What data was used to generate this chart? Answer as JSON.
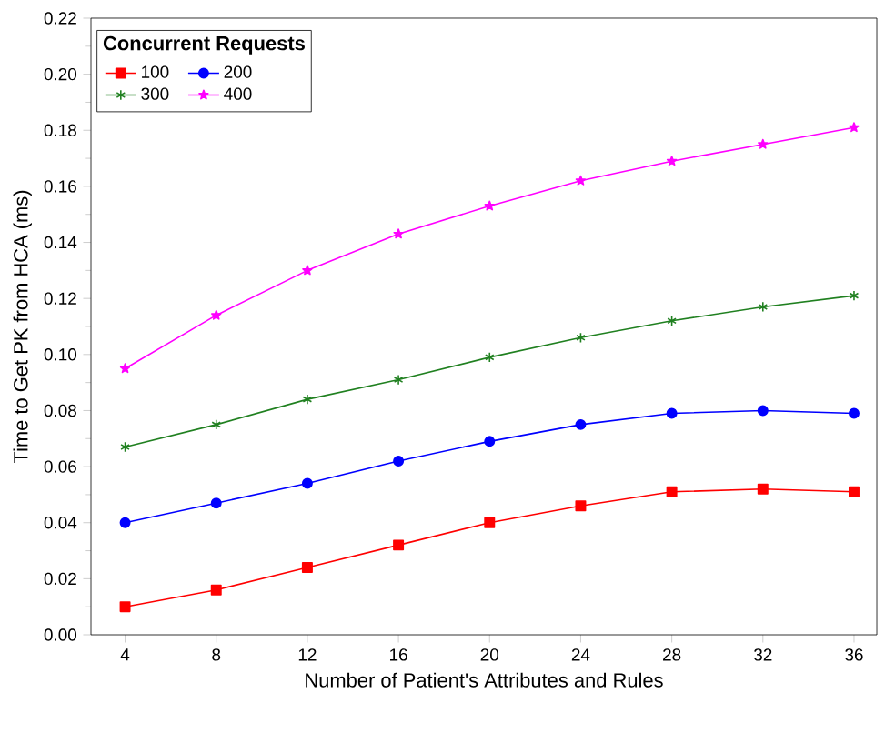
{
  "chart_data": {
    "type": "line",
    "xlabel": "Number of Patient's Attributes and Rules",
    "ylabel": "Time to Get PK from HCA (ms)",
    "legend_title": "Concurrent Requests",
    "legend": "top left",
    "x": [
      4,
      8,
      12,
      16,
      20,
      24,
      28,
      32,
      36
    ],
    "xlim": [
      2.5,
      37
    ],
    "xticks": [
      4,
      8,
      12,
      16,
      20,
      24,
      28,
      32,
      36
    ],
    "ylim": [
      0,
      0.22
    ],
    "yticks": [
      {
        "value": 0,
        "label": "0.00"
      },
      {
        "value": 0.02,
        "label": "0.02"
      },
      {
        "value": 0.04,
        "label": "0.04"
      },
      {
        "value": 0.06,
        "label": "0.06"
      },
      {
        "value": 0.08,
        "label": "0.08"
      },
      {
        "value": 0.1,
        "label": "0.10"
      },
      {
        "value": 0.12,
        "label": "0.12"
      },
      {
        "value": 0.14,
        "label": "0.14"
      },
      {
        "value": 0.16,
        "label": "0.16"
      },
      {
        "value": 0.18,
        "label": "0.18"
      },
      {
        "value": 0.2,
        "label": "0.20"
      },
      {
        "value": 0.22,
        "label": "0.22"
      }
    ],
    "series": [
      {
        "name": "100",
        "color": "#ff0000",
        "marker": "square",
        "values": [
          0.01,
          0.016,
          0.024,
          0.032,
          0.04,
          0.046,
          0.051,
          0.052,
          0.051
        ]
      },
      {
        "name": "200",
        "color": "#0000ff",
        "marker": "circle",
        "values": [
          0.04,
          0.047,
          0.054,
          0.062,
          0.069,
          0.075,
          0.079,
          0.08,
          0.079
        ]
      },
      {
        "name": "300",
        "color": "#208020",
        "marker": "cross",
        "values": [
          0.067,
          0.075,
          0.084,
          0.091,
          0.099,
          0.106,
          0.112,
          0.117,
          0.121
        ]
      },
      {
        "name": "400",
        "color": "#ff00ff",
        "marker": "star",
        "values": [
          0.095,
          0.114,
          0.13,
          0.143,
          0.153,
          0.162,
          0.169,
          0.175,
          0.181
        ]
      }
    ]
  }
}
